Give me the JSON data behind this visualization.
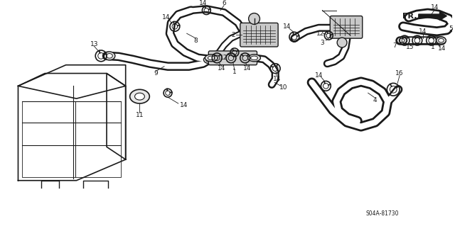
{
  "bg_color": "#ffffff",
  "line_color": "#1a1a1a",
  "diagram_code": "S04A-81730",
  "fr_label": "FR.",
  "figsize": [
    6.4,
    3.19
  ],
  "dpi": 100
}
